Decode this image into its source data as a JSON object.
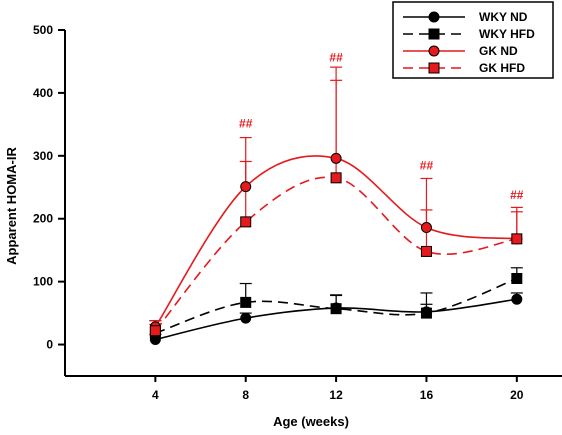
{
  "chart_data": {
    "type": "line",
    "xlabel": "Age (weeks)",
    "ylabel": "Apparent HOMA-IR",
    "x": [
      4,
      8,
      12,
      16,
      20
    ],
    "xlim": [
      0,
      22
    ],
    "ylim": [
      -50,
      500
    ],
    "xticks": [
      "4",
      "8",
      "12",
      "16",
      "20"
    ],
    "yticks": [
      "0",
      "100",
      "200",
      "300",
      "400",
      "500"
    ],
    "grid": false,
    "legend_position": "top-right",
    "series": [
      {
        "name": "WKY ND",
        "color": "#000000",
        "dash": "solid",
        "marker": "circle",
        "values": [
          8,
          42,
          58,
          52,
          72
        ],
        "err": [
          8,
          8,
          20,
          12,
          10
        ]
      },
      {
        "name": "WKY HFD",
        "color": "#000000",
        "dash": "dashed",
        "marker": "square",
        "values": [
          18,
          67,
          57,
          50,
          105
        ],
        "err": [
          20,
          30,
          22,
          32,
          17
        ]
      },
      {
        "name": "GK ND",
        "color": "#e41a1c",
        "dash": "solid",
        "marker": "circle",
        "values": [
          28,
          251,
          296,
          186,
          168
        ],
        "err": [
          10,
          78,
          145,
          78,
          50
        ]
      },
      {
        "name": "GK HFD",
        "color": "#e41a1c",
        "dash": "dashed",
        "marker": "square",
        "values": [
          22,
          195,
          265,
          148,
          168
        ],
        "err": [
          10,
          96,
          155,
          66,
          43
        ]
      }
    ],
    "annotations": [
      {
        "x": 8,
        "y": 345,
        "text": "##"
      },
      {
        "x": 12,
        "y": 450,
        "text": "##"
      },
      {
        "x": 16,
        "y": 278,
        "text": "##"
      },
      {
        "x": 20,
        "y": 231,
        "text": "##"
      }
    ],
    "annotation_color": "#e41a1c"
  }
}
